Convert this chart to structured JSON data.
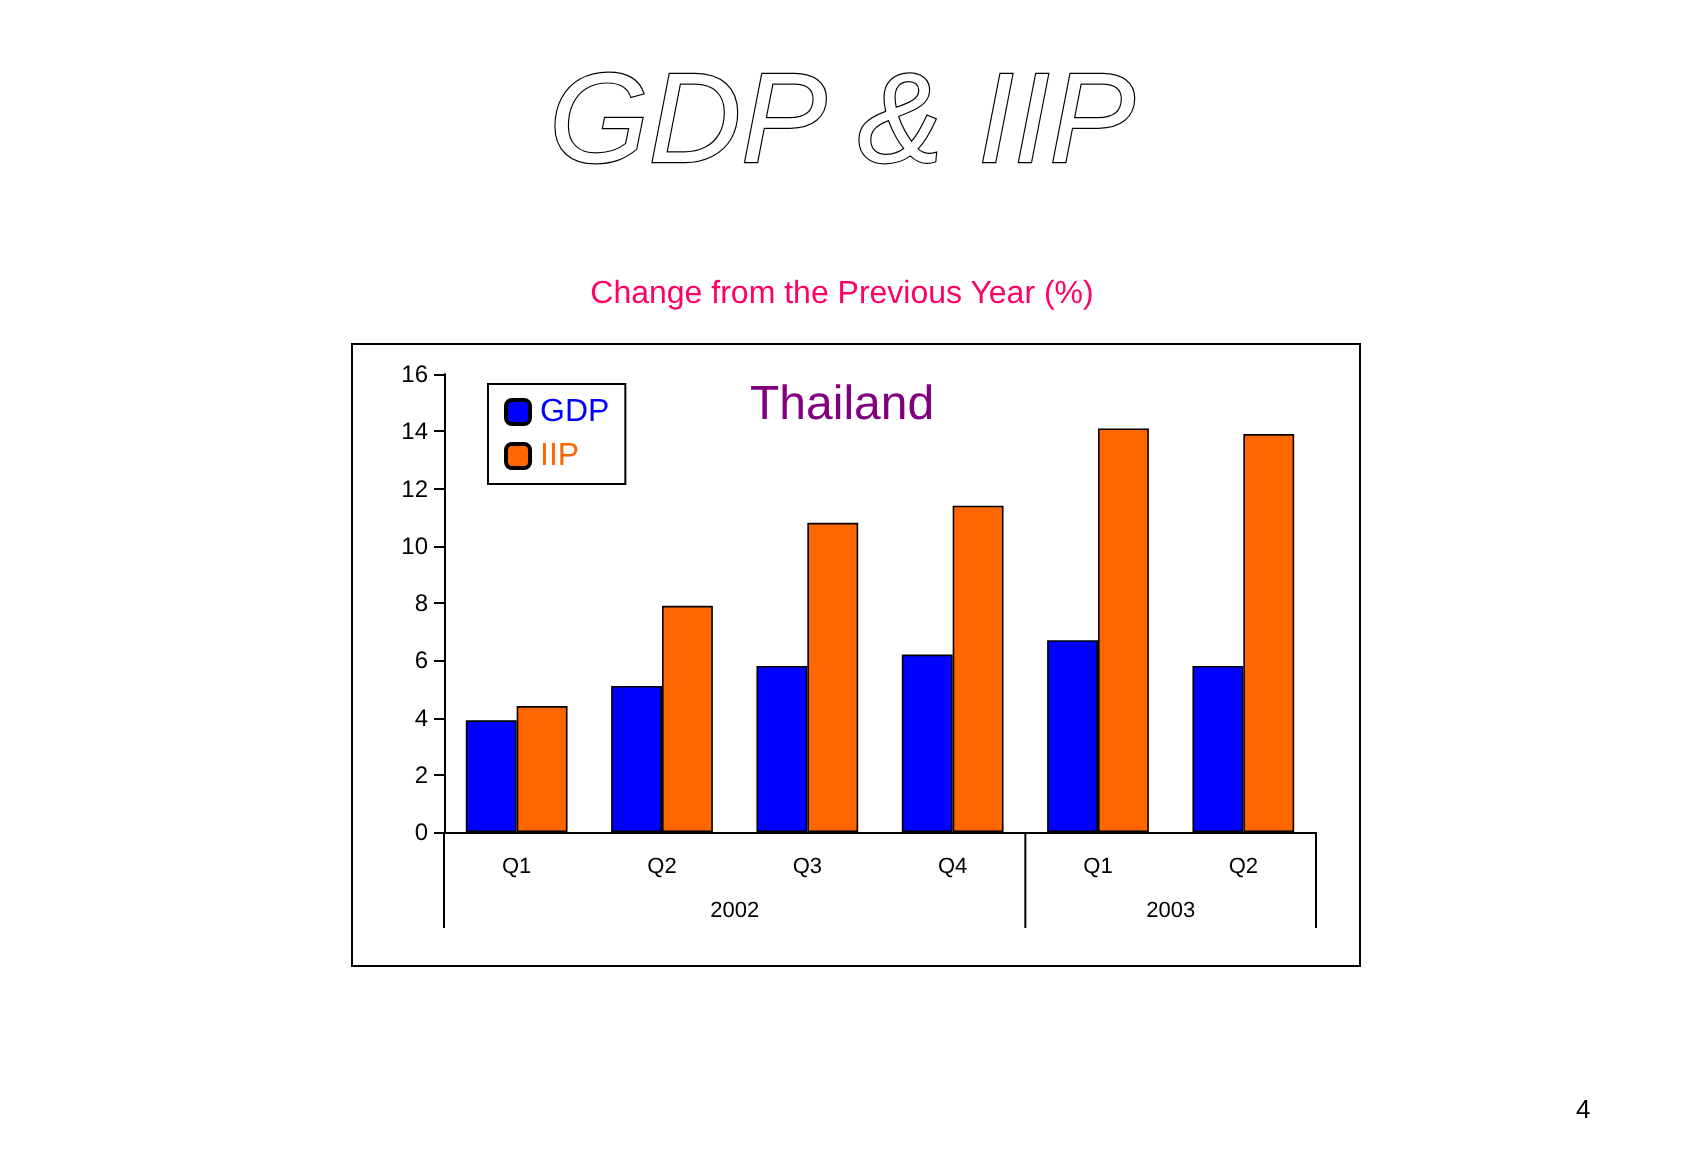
{
  "chart_data": {
    "type": "bar",
    "title": "GDP & IIP",
    "subtitle": "Change from the Previous Year (%)",
    "categories": [
      "Q1",
      "Q2",
      "Q3",
      "Q4",
      "Q1",
      "Q2"
    ],
    "series": [
      {
        "name": "GDP",
        "color": "#0000ff",
        "values": [
          3.9,
          5.1,
          5.8,
          6.2,
          6.7,
          5.8
        ]
      },
      {
        "name": "IIP",
        "color": "#ff6600",
        "values": [
          4.4,
          7.9,
          10.8,
          11.4,
          14.1,
          13.9
        ]
      }
    ],
    "ylim": [
      0,
      16
    ],
    "yticks": [
      0,
      2,
      4,
      6,
      8,
      10,
      12,
      14,
      16
    ],
    "grid": false,
    "legend": "top left",
    "annotations": [
      "Thailand",
      "2002",
      "2003",
      "4"
    ]
  }
}
